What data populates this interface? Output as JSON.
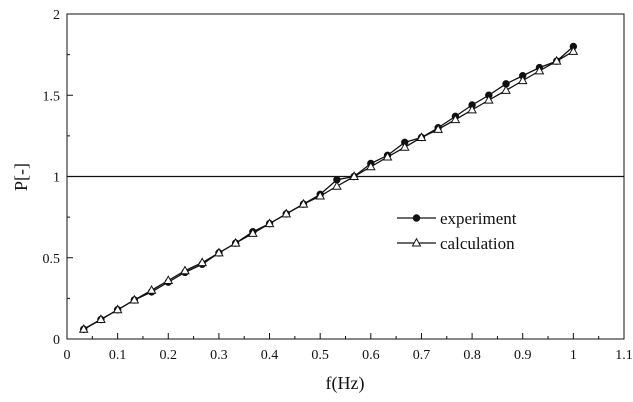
{
  "chart_data": {
    "type": "line",
    "title": "",
    "xlabel": "f(Hz)",
    "ylabel": "P[-]",
    "xlim": [
      0,
      1.1
    ],
    "ylim": [
      0,
      2
    ],
    "x_ticks": [
      0,
      0.1,
      0.2,
      0.3,
      0.4,
      0.5,
      0.6,
      0.7,
      0.8,
      0.9,
      1,
      1.1
    ],
    "x_tick_labels": [
      "0",
      "0.1",
      "0.2",
      "0.3",
      "0.4",
      "0.5",
      "0.6",
      "0.7",
      "0.8",
      "0.9",
      "1",
      "1.1"
    ],
    "y_ticks": [
      0,
      0.5,
      1,
      1.5,
      2
    ],
    "y_tick_labels": [
      "0",
      "0.5",
      "1",
      "1.5",
      "2"
    ],
    "grid": false,
    "legend_position": "center-right",
    "reference_line_y": 1,
    "x": [
      0.033,
      0.067,
      0.1,
      0.133,
      0.167,
      0.2,
      0.233,
      0.267,
      0.3,
      0.333,
      0.367,
      0.4,
      0.433,
      0.467,
      0.5,
      0.533,
      0.567,
      0.6,
      0.633,
      0.667,
      0.7,
      0.733,
      0.767,
      0.8,
      0.833,
      0.867,
      0.9,
      0.933,
      0.967,
      1.0
    ],
    "series": [
      {
        "name": "experiment",
        "marker": "filled-circle",
        "color": "#111111",
        "values": [
          0.06,
          0.12,
          0.18,
          0.24,
          0.29,
          0.35,
          0.41,
          0.46,
          0.53,
          0.59,
          0.66,
          0.71,
          0.77,
          0.83,
          0.89,
          0.98,
          1.0,
          1.08,
          1.13,
          1.21,
          1.24,
          1.3,
          1.37,
          1.44,
          1.5,
          1.57,
          1.62,
          1.67,
          1.71,
          1.8
        ]
      },
      {
        "name": "calculation",
        "marker": "open-triangle",
        "color": "#111111",
        "values": [
          0.06,
          0.12,
          0.18,
          0.24,
          0.3,
          0.36,
          0.42,
          0.47,
          0.53,
          0.59,
          0.65,
          0.71,
          0.77,
          0.83,
          0.88,
          0.94,
          1.0,
          1.06,
          1.12,
          1.18,
          1.24,
          1.29,
          1.35,
          1.41,
          1.47,
          1.53,
          1.59,
          1.65,
          1.71,
          1.77
        ]
      }
    ]
  }
}
